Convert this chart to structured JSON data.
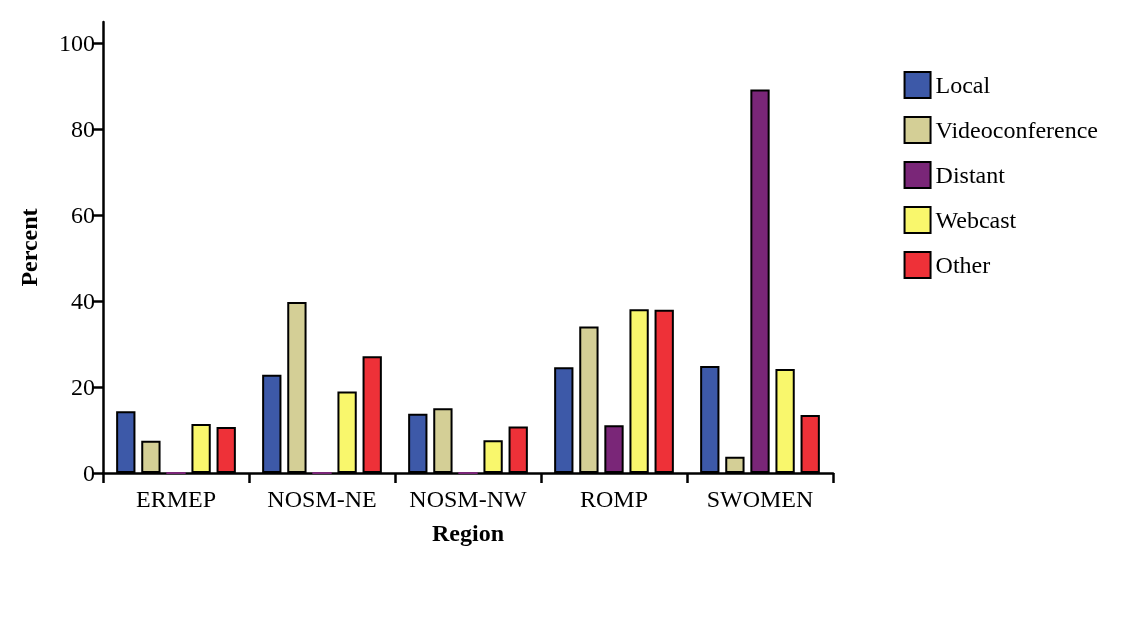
{
  "chart_data": {
    "type": "bar",
    "xlabel": "Region",
    "ylabel": "Percent",
    "categories": [
      "ERMEP",
      "NOSM-NE",
      "NOSM-NW",
      "ROMP",
      "SWOMEN"
    ],
    "series": [
      {
        "name": "Local",
        "color": "#3d59a8",
        "values": [
          14.4,
          22.9,
          13.8,
          24.6,
          24.9
        ]
      },
      {
        "name": "Videoconference",
        "color": "#d4cf96",
        "values": [
          7.5,
          39.8,
          15.1,
          34.1,
          3.8
        ]
      },
      {
        "name": "Distant",
        "color": "#7a2678",
        "values": [
          0,
          0,
          0,
          11.1,
          89.3
        ]
      },
      {
        "name": "Webcast",
        "color": "#f9f76c",
        "values": [
          11.4,
          19.0,
          7.6,
          38.1,
          24.2
        ]
      },
      {
        "name": "Other",
        "color": "#ee3138",
        "values": [
          10.7,
          27.2,
          10.8,
          38.0,
          13.5
        ]
      }
    ],
    "ylim": [
      0,
      105
    ],
    "yticks": [
      0,
      20,
      40,
      60,
      80,
      100
    ],
    "grid": false,
    "legend": "top right"
  }
}
